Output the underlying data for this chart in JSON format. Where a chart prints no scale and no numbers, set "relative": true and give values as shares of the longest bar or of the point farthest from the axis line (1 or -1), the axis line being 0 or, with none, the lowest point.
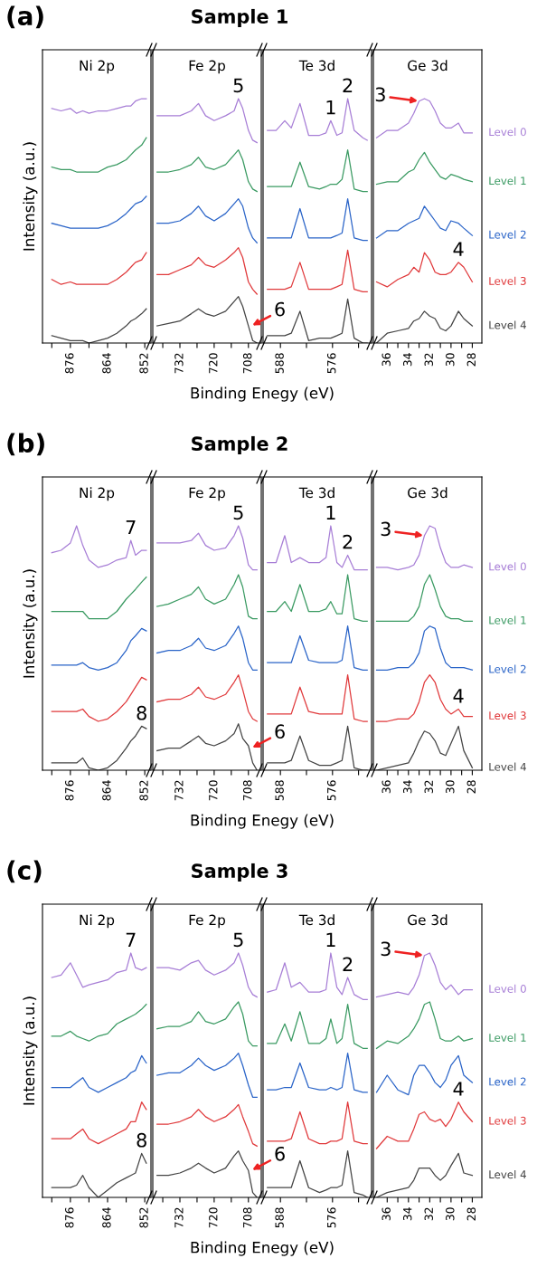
{
  "chart_data": [
    {
      "type": "line",
      "relative": true,
      "title": "Ni 2p",
      "ylabel": "Intensity (a.u.)",
      "x": [
        882,
        879,
        876,
        874,
        872,
        870,
        867,
        864,
        861,
        858,
        856.5,
        855,
        853,
        851.5
      ],
      "xlim": [
        885,
        850
      ],
      "xticks": [
        {
          "value": 882,
          "label": null
        },
        876,
        {
          "value": 870,
          "label": null
        },
        864,
        {
          "value": 858,
          "label": null
        },
        852
      ],
      "tick_labels": "x",
      "annotations": [
        "(a)",
        "Sample 1"
      ],
      "series": [
        {
          "color": "#a77ed6",
          "values": [
            0.96,
            0.95,
            0.96,
            0.94,
            0.95,
            0.94,
            0.95,
            0.95,
            0.96,
            0.97,
            0.97,
            0.99,
            1.0,
            1.0
          ]
        },
        {
          "color": "#3a9a62",
          "values": [
            0.72,
            0.71,
            0.71,
            0.7,
            0.7,
            0.7,
            0.7,
            0.72,
            0.73,
            0.75,
            0.77,
            0.79,
            0.81,
            0.84
          ]
        },
        {
          "color": "#2a64c8",
          "values": [
            0.49,
            0.48,
            0.47,
            0.47,
            0.47,
            0.47,
            0.47,
            0.48,
            0.5,
            0.53,
            0.55,
            0.57,
            0.58,
            0.6
          ]
        },
        {
          "color": "#e0393b",
          "values": [
            0.26,
            0.24,
            0.25,
            0.24,
            0.24,
            0.24,
            0.24,
            0.24,
            0.26,
            0.29,
            0.31,
            0.33,
            0.34,
            0.37
          ]
        },
        {
          "color": "#444444",
          "values": [
            0.03,
            0.02,
            0.01,
            0.01,
            0.01,
            0.0,
            0.01,
            0.02,
            0.04,
            0.07,
            0.09,
            0.1,
            0.12,
            0.14
          ]
        }
      ]
    },
    {
      "type": "line",
      "relative": true,
      "title": "Fe 2p",
      "xlabel": "Binding Enegy (eV)",
      "x": [
        740,
        736,
        732,
        728,
        725.5,
        723,
        720,
        716,
        713,
        711.5,
        710,
        708,
        706.5,
        705
      ],
      "xlim": [
        741.5,
        703.5
      ],
      "xticks": [
        {
          "value": 738,
          "label": null
        },
        732,
        {
          "value": 726,
          "label": null
        },
        720,
        {
          "value": 714,
          "label": null
        },
        708
      ],
      "tick_labels": "x",
      "annotations": [
        {
          "text": "5",
          "x": 711.5,
          "y": 1.0
        },
        {
          "text": "6",
          "x": 707,
          "y": 0.07
        }
      ],
      "series": [
        {
          "color": "#a77ed6",
          "values": [
            0.93,
            0.93,
            0.93,
            0.95,
            0.98,
            0.93,
            0.91,
            0.93,
            0.95,
            1.0,
            0.96,
            0.87,
            0.83,
            0.82
          ]
        },
        {
          "color": "#3a9a62",
          "values": [
            0.7,
            0.7,
            0.71,
            0.73,
            0.76,
            0.72,
            0.71,
            0.73,
            0.77,
            0.79,
            0.75,
            0.66,
            0.63,
            0.62
          ]
        },
        {
          "color": "#2a64c8",
          "values": [
            0.49,
            0.49,
            0.5,
            0.53,
            0.56,
            0.52,
            0.5,
            0.53,
            0.57,
            0.59,
            0.56,
            0.47,
            0.43,
            0.41
          ]
        },
        {
          "color": "#e0393b",
          "values": [
            0.28,
            0.28,
            0.3,
            0.32,
            0.35,
            0.32,
            0.31,
            0.34,
            0.37,
            0.39,
            0.35,
            0.25,
            0.22,
            0.2
          ]
        },
        {
          "color": "#444444",
          "values": [
            0.07,
            0.08,
            0.09,
            0.12,
            0.14,
            0.12,
            0.11,
            0.13,
            0.17,
            0.19,
            0.15,
            0.07,
            0.01,
            0.0
          ]
        }
      ]
    },
    {
      "type": "line",
      "relative": true,
      "title": "Te 3d",
      "x": [
        591,
        589,
        587,
        585.5,
        583.5,
        581.5,
        579,
        577.5,
        576.4,
        575,
        573.8,
        572.5,
        571,
        569,
        568
      ],
      "xlim": [
        592,
        567
      ],
      "xticks": [
        588,
        {
          "value": 582,
          "label": null
        },
        576,
        {
          "value": 570,
          "label": null
        }
      ],
      "tick_labels": "x",
      "annotations": [
        {
          "text": "1",
          "x": 576.4,
          "y": 0.91
        },
        {
          "text": "2",
          "x": 572.5,
          "y": 1.0
        }
      ],
      "series": [
        {
          "color": "#a77ed6",
          "values": [
            0.87,
            0.87,
            0.91,
            0.88,
            0.98,
            0.85,
            0.85,
            0.86,
            0.91,
            0.85,
            0.86,
            1.0,
            0.87,
            0.84,
            0.83
          ]
        },
        {
          "color": "#3a9a62",
          "values": [
            0.64,
            0.64,
            0.64,
            0.64,
            0.74,
            0.64,
            0.63,
            0.64,
            0.65,
            0.65,
            0.67,
            0.79,
            0.63,
            0.62,
            0.62
          ]
        },
        {
          "color": "#2a64c8",
          "values": [
            0.43,
            0.43,
            0.43,
            0.43,
            0.55,
            0.43,
            0.43,
            0.43,
            0.43,
            0.44,
            0.45,
            0.59,
            0.43,
            0.42,
            0.42
          ]
        },
        {
          "color": "#e0393b",
          "values": [
            0.22,
            0.22,
            0.22,
            0.23,
            0.33,
            0.22,
            0.22,
            0.22,
            0.22,
            0.23,
            0.24,
            0.38,
            0.22,
            0.21,
            0.21
          ]
        },
        {
          "color": "#444444",
          "values": [
            0.03,
            0.03,
            0.03,
            0.04,
            0.13,
            0.01,
            0.02,
            0.02,
            0.02,
            0.03,
            0.04,
            0.18,
            0.02,
            0.0,
            0.0
          ]
        }
      ]
    },
    {
      "type": "line",
      "relative": true,
      "title": "Ge 3d",
      "x": [
        37,
        36,
        35,
        34,
        33.5,
        33,
        32.5,
        32,
        31.5,
        31,
        30.5,
        30,
        29.3,
        28.8,
        28
      ],
      "xlim": [
        37.3,
        27.1
      ],
      "xticks": [
        36,
        {
          "value": 35,
          "label": null
        },
        34,
        {
          "value": 33,
          "label": null
        },
        32,
        {
          "value": 31,
          "label": null
        },
        30,
        {
          "value": 29,
          "label": null
        },
        28
      ],
      "tick_labels": "x",
      "annotations": [
        {
          "text": "3",
          "x": 33,
          "y": 0.99
        },
        {
          "text": "4",
          "x": 29.3,
          "y": 0.33
        }
      ],
      "series": [
        {
          "name": "Level 0",
          "color": "#a77ed6",
          "values": [
            0.84,
            0.87,
            0.87,
            0.9,
            0.94,
            0.99,
            1.0,
            0.99,
            0.95,
            0.9,
            0.88,
            0.88,
            0.9,
            0.86,
            0.86
          ]
        },
        {
          "name": "Level 1",
          "color": "#3a9a62",
          "values": [
            0.65,
            0.66,
            0.66,
            0.7,
            0.71,
            0.75,
            0.78,
            0.74,
            0.71,
            0.68,
            0.67,
            0.69,
            0.68,
            0.67,
            0.66
          ]
        },
        {
          "name": "Level 2",
          "color": "#2a64c8",
          "values": [
            0.43,
            0.46,
            0.46,
            0.49,
            0.5,
            0.51,
            0.56,
            0.53,
            0.5,
            0.47,
            0.46,
            0.5,
            0.49,
            0.47,
            0.44
          ]
        },
        {
          "name": "Level 3",
          "color": "#e0393b",
          "values": [
            0.25,
            0.23,
            0.26,
            0.28,
            0.31,
            0.29,
            0.37,
            0.34,
            0.29,
            0.28,
            0.28,
            0.29,
            0.33,
            0.31,
            0.25
          ]
        },
        {
          "name": "Level 4",
          "color": "#444444",
          "values": [
            0.0,
            0.04,
            0.05,
            0.06,
            0.09,
            0.1,
            0.13,
            0.11,
            0.1,
            0.06,
            0.05,
            0.07,
            0.13,
            0.1,
            0.07
          ]
        }
      ]
    },
    {
      "type": "line",
      "relative": true,
      "title": "Ni 2p",
      "ylabel": "Intensity (a.u.)",
      "x": [
        882,
        879,
        876,
        874,
        872,
        870,
        867,
        864,
        861,
        858,
        856.5,
        855,
        853,
        851.5
      ],
      "xlim": [
        885,
        850
      ],
      "xticks": [
        {
          "value": 882,
          "label": null
        },
        876,
        {
          "value": 870,
          "label": null
        },
        864,
        {
          "value": 858,
          "label": null
        },
        852
      ],
      "tick_labels": "x",
      "annotations": [
        "(b)",
        "Sample 2",
        {
          "text": "7",
          "x": 856.5,
          "y": 0.94
        },
        {
          "text": "8",
          "x": 853,
          "y": 0.18
        }
      ],
      "series": [
        {
          "color": "#a77ed6",
          "values": [
            0.89,
            0.9,
            0.93,
            1.0,
            0.92,
            0.86,
            0.83,
            0.84,
            0.86,
            0.87,
            0.94,
            0.88,
            0.9,
            0.9
          ]
        },
        {
          "color": "#3a9a62",
          "values": [
            0.65,
            0.65,
            0.65,
            0.65,
            0.65,
            0.62,
            0.62,
            0.62,
            0.65,
            0.7,
            0.72,
            0.74,
            0.77,
            0.79
          ]
        },
        {
          "color": "#2a64c8",
          "values": [
            0.43,
            0.43,
            0.43,
            0.43,
            0.44,
            0.42,
            0.41,
            0.42,
            0.44,
            0.49,
            0.53,
            0.55,
            0.58,
            0.57
          ]
        },
        {
          "color": "#e0393b",
          "values": [
            0.24,
            0.24,
            0.24,
            0.24,
            0.25,
            0.22,
            0.2,
            0.21,
            0.24,
            0.28,
            0.31,
            0.34,
            0.38,
            0.37
          ]
        },
        {
          "color": "#444444",
          "values": [
            0.03,
            0.03,
            0.03,
            0.03,
            0.05,
            0.01,
            0.0,
            0.01,
            0.04,
            0.09,
            0.12,
            0.14,
            0.18,
            0.17
          ]
        }
      ]
    },
    {
      "type": "line",
      "relative": true,
      "title": "Fe 2p",
      "xlabel": "Binding Enegy (eV)",
      "x": [
        740,
        736,
        732,
        728,
        725.5,
        723,
        720,
        716,
        713,
        711.5,
        710,
        708,
        706.5,
        705
      ],
      "xlim": [
        741.5,
        703.5
      ],
      "xticks": [
        {
          "value": 738,
          "label": null
        },
        732,
        {
          "value": 726,
          "label": null
        },
        720,
        {
          "value": 714,
          "label": null
        },
        708
      ],
      "tick_labels": "x",
      "annotations": [
        {
          "text": "5",
          "x": 711.5,
          "y": 1.0
        },
        {
          "text": "6",
          "x": 707,
          "y": 0.09
        }
      ],
      "series": [
        {
          "color": "#a77ed6",
          "values": [
            0.93,
            0.93,
            0.93,
            0.94,
            0.97,
            0.92,
            0.9,
            0.91,
            0.96,
            1.0,
            0.95,
            0.84,
            0.82,
            0.82
          ]
        },
        {
          "color": "#3a9a62",
          "values": [
            0.67,
            0.68,
            0.7,
            0.72,
            0.75,
            0.7,
            0.68,
            0.7,
            0.76,
            0.8,
            0.75,
            0.63,
            0.62,
            0.62
          ]
        },
        {
          "color": "#2a64c8",
          "values": [
            0.48,
            0.49,
            0.49,
            0.51,
            0.54,
            0.5,
            0.49,
            0.51,
            0.56,
            0.59,
            0.54,
            0.44,
            0.41,
            0.41
          ]
        },
        {
          "color": "#e0393b",
          "values": [
            0.28,
            0.29,
            0.29,
            0.31,
            0.34,
            0.3,
            0.29,
            0.31,
            0.36,
            0.39,
            0.33,
            0.24,
            0.21,
            0.2
          ]
        },
        {
          "color": "#444444",
          "values": [
            0.08,
            0.09,
            0.09,
            0.12,
            0.14,
            0.11,
            0.1,
            0.12,
            0.15,
            0.19,
            0.13,
            0.1,
            0.03,
            0.0
          ]
        }
      ]
    },
    {
      "type": "line",
      "relative": true,
      "title": "Te 3d",
      "x": [
        591,
        589,
        587,
        585.5,
        583.5,
        581.5,
        579,
        577.5,
        576.4,
        575,
        573.8,
        572.5,
        571,
        569,
        568
      ],
      "xlim": [
        592,
        567
      ],
      "xticks": [
        588,
        {
          "value": 582,
          "label": null
        },
        576,
        {
          "value": 570,
          "label": null
        }
      ],
      "tick_labels": "x",
      "annotations": [
        {
          "text": "1",
          "x": 576.4,
          "y": 1.0
        },
        {
          "text": "2",
          "x": 572.5,
          "y": 0.88
        }
      ],
      "series": [
        {
          "color": "#a77ed6",
          "values": [
            0.85,
            0.85,
            0.96,
            0.85,
            0.87,
            0.85,
            0.85,
            0.87,
            1.0,
            0.85,
            0.83,
            0.88,
            0.82,
            0.82,
            0.82
          ]
        },
        {
          "color": "#3a9a62",
          "values": [
            0.65,
            0.65,
            0.69,
            0.65,
            0.76,
            0.65,
            0.65,
            0.66,
            0.69,
            0.64,
            0.64,
            0.8,
            0.62,
            0.61,
            0.61
          ]
        },
        {
          "color": "#2a64c8",
          "values": [
            0.44,
            0.44,
            0.44,
            0.44,
            0.55,
            0.45,
            0.44,
            0.44,
            0.44,
            0.44,
            0.45,
            0.59,
            0.42,
            0.41,
            0.41
          ]
        },
        {
          "color": "#e0393b",
          "values": [
            0.23,
            0.23,
            0.23,
            0.23,
            0.34,
            0.24,
            0.23,
            0.23,
            0.23,
            0.23,
            0.23,
            0.39,
            0.21,
            0.2,
            0.2
          ]
        },
        {
          "color": "#444444",
          "values": [
            0.03,
            0.03,
            0.03,
            0.04,
            0.14,
            0.04,
            0.02,
            0.02,
            0.02,
            0.03,
            0.04,
            0.18,
            0.01,
            0.0,
            0.0
          ]
        }
      ]
    },
    {
      "type": "line",
      "relative": true,
      "title": "Ge 3d",
      "x": [
        37,
        36,
        35,
        34,
        33.5,
        33,
        32.5,
        32,
        31.5,
        31,
        30.5,
        30,
        29.3,
        28.8,
        28
      ],
      "xlim": [
        37.3,
        27.1
      ],
      "xticks": [
        36,
        {
          "value": 35,
          "label": null
        },
        34,
        {
          "value": 33,
          "label": null
        },
        32,
        {
          "value": 31,
          "label": null
        },
        30,
        {
          "value": 29,
          "label": null
        },
        28
      ],
      "tick_labels": "x",
      "annotations": [
        {
          "text": "3",
          "x": 32.5,
          "y": 0.96
        },
        {
          "text": "4",
          "x": 29.3,
          "y": 0.25
        }
      ],
      "series": [
        {
          "name": "Level 0",
          "color": "#a77ed6",
          "values": [
            0.83,
            0.83,
            0.82,
            0.83,
            0.84,
            0.88,
            0.96,
            1.0,
            0.99,
            0.91,
            0.85,
            0.83,
            0.83,
            0.84,
            0.83
          ]
        },
        {
          "name": "Level 1",
          "color": "#3a9a62",
          "values": [
            0.61,
            0.61,
            0.61,
            0.61,
            0.63,
            0.67,
            0.76,
            0.8,
            0.74,
            0.67,
            0.63,
            0.62,
            0.62,
            0.61,
            0.61
          ]
        },
        {
          "name": "Level 2",
          "color": "#2a64c8",
          "values": [
            0.41,
            0.41,
            0.42,
            0.42,
            0.44,
            0.48,
            0.57,
            0.59,
            0.58,
            0.5,
            0.44,
            0.42,
            0.42,
            0.42,
            0.41
          ]
        },
        {
          "name": "Level 3",
          "color": "#e0393b",
          "values": [
            0.2,
            0.2,
            0.21,
            0.21,
            0.23,
            0.28,
            0.36,
            0.39,
            0.36,
            0.29,
            0.25,
            0.23,
            0.25,
            0.22,
            0.22
          ]
        },
        {
          "name": "Level 4",
          "color": "#444444",
          "values": [
            0.0,
            0.01,
            0.02,
            0.03,
            0.07,
            0.12,
            0.16,
            0.15,
            0.12,
            0.07,
            0.06,
            0.11,
            0.18,
            0.08,
            0.01
          ]
        }
      ]
    },
    {
      "type": "line",
      "relative": true,
      "title": "Ni 2p",
      "ylabel": "Intensity (a.u.)",
      "x": [
        882,
        879,
        876,
        874,
        872,
        870,
        867,
        864,
        861,
        858,
        856.5,
        855,
        853,
        851.5
      ],
      "xlim": [
        885,
        850
      ],
      "xticks": [
        {
          "value": 882,
          "label": null
        },
        876,
        {
          "value": 870,
          "label": null
        },
        864,
        {
          "value": 858,
          "label": null
        },
        852
      ],
      "tick_labels": "x",
      "annotations": [
        "(c)",
        "Sample 3",
        {
          "text": "7",
          "x": 856.5,
          "y": 1.0
        },
        {
          "text": "8",
          "x": 853,
          "y": 0.18
        }
      ],
      "series": [
        {
          "color": "#a77ed6",
          "values": [
            0.9,
            0.91,
            0.96,
            0.91,
            0.86,
            0.87,
            0.88,
            0.89,
            0.92,
            0.93,
            1.0,
            0.94,
            0.93,
            0.94
          ]
        },
        {
          "color": "#3a9a62",
          "values": [
            0.66,
            0.66,
            0.68,
            0.66,
            0.65,
            0.64,
            0.66,
            0.67,
            0.71,
            0.73,
            0.74,
            0.75,
            0.77,
            0.79
          ]
        },
        {
          "color": "#2a64c8",
          "values": [
            0.45,
            0.45,
            0.45,
            0.47,
            0.49,
            0.45,
            0.43,
            0.45,
            0.47,
            0.49,
            0.51,
            0.52,
            0.58,
            0.55
          ]
        },
        {
          "color": "#e0393b",
          "values": [
            0.24,
            0.24,
            0.24,
            0.26,
            0.28,
            0.24,
            0.22,
            0.24,
            0.26,
            0.28,
            0.31,
            0.31,
            0.39,
            0.36
          ]
        },
        {
          "color": "#444444",
          "values": [
            0.04,
            0.04,
            0.04,
            0.05,
            0.09,
            0.04,
            0.0,
            0.03,
            0.06,
            0.08,
            0.09,
            0.1,
            0.18,
            0.14
          ]
        }
      ]
    },
    {
      "type": "line",
      "relative": true,
      "title": "Fe 2p",
      "xlabel": "Binding Enegy (eV)",
      "x": [
        740,
        736,
        732,
        728,
        725.5,
        723,
        720,
        716,
        713,
        711.5,
        710,
        708,
        706.5,
        705
      ],
      "xlim": [
        741.5,
        703.5
      ],
      "xticks": [
        {
          "value": 738,
          "label": null
        },
        732,
        {
          "value": 726,
          "label": null
        },
        720,
        {
          "value": 714,
          "label": null
        },
        708
      ],
      "tick_labels": "x",
      "annotations": [
        {
          "text": "5",
          "x": 711.5,
          "y": 1.0
        },
        {
          "text": "6",
          "x": 707,
          "y": 0.11
        }
      ],
      "series": [
        {
          "color": "#a77ed6",
          "values": [
            0.94,
            0.94,
            0.93,
            0.96,
            0.97,
            0.93,
            0.91,
            0.93,
            0.96,
            1.0,
            0.95,
            0.86,
            0.83,
            0.82
          ]
        },
        {
          "color": "#3a9a62",
          "values": [
            0.69,
            0.7,
            0.7,
            0.72,
            0.76,
            0.72,
            0.71,
            0.73,
            0.78,
            0.8,
            0.75,
            0.64,
            0.62,
            0.62
          ]
        },
        {
          "color": "#2a64c8",
          "values": [
            0.5,
            0.51,
            0.51,
            0.54,
            0.57,
            0.54,
            0.52,
            0.54,
            0.57,
            0.59,
            0.54,
            0.46,
            0.41,
            0.41
          ]
        },
        {
          "color": "#e0393b",
          "values": [
            0.3,
            0.3,
            0.31,
            0.33,
            0.36,
            0.33,
            0.31,
            0.33,
            0.36,
            0.38,
            0.33,
            0.27,
            0.22,
            0.21
          ]
        },
        {
          "color": "#444444",
          "values": [
            0.09,
            0.09,
            0.1,
            0.12,
            0.14,
            0.12,
            0.1,
            0.12,
            0.17,
            0.19,
            0.15,
            0.11,
            0.02,
            0.0
          ]
        }
      ]
    },
    {
      "type": "line",
      "relative": true,
      "title": "Te 3d",
      "x": [
        591,
        589,
        587,
        585.5,
        583.5,
        581.5,
        579,
        577.5,
        576.4,
        575,
        573.8,
        572.5,
        571,
        569,
        568
      ],
      "xlim": [
        592,
        567
      ],
      "xticks": [
        588,
        {
          "value": 582,
          "label": null
        },
        576,
        {
          "value": 570,
          "label": null
        }
      ],
      "tick_labels": "x",
      "annotations": [
        {
          "text": "1",
          "x": 576.4,
          "y": 1.0
        },
        {
          "text": "2",
          "x": 572.5,
          "y": 0.9
        }
      ],
      "series": [
        {
          "color": "#a77ed6",
          "values": [
            0.84,
            0.85,
            0.96,
            0.86,
            0.88,
            0.84,
            0.84,
            0.85,
            1.0,
            0.86,
            0.83,
            0.9,
            0.83,
            0.81,
            0.81
          ]
        },
        {
          "color": "#3a9a62",
          "values": [
            0.63,
            0.63,
            0.71,
            0.64,
            0.76,
            0.63,
            0.63,
            0.65,
            0.73,
            0.63,
            0.65,
            0.79,
            0.63,
            0.61,
            0.61
          ]
        },
        {
          "color": "#2a64c8",
          "values": [
            0.44,
            0.44,
            0.45,
            0.45,
            0.55,
            0.45,
            0.44,
            0.44,
            0.45,
            0.44,
            0.45,
            0.59,
            0.44,
            0.43,
            0.43
          ]
        },
        {
          "color": "#e0393b",
          "values": [
            0.23,
            0.23,
            0.23,
            0.24,
            0.35,
            0.24,
            0.22,
            0.22,
            0.23,
            0.23,
            0.24,
            0.39,
            0.23,
            0.22,
            0.22
          ]
        },
        {
          "color": "#444444",
          "values": [
            0.04,
            0.04,
            0.04,
            0.04,
            0.15,
            0.04,
            0.02,
            0.03,
            0.04,
            0.04,
            0.05,
            0.19,
            0.02,
            0.01,
            0.0
          ]
        }
      ]
    },
    {
      "type": "line",
      "relative": true,
      "title": "Ge 3d",
      "x": [
        37,
        36,
        35,
        34,
        33.5,
        33,
        32.5,
        32,
        31.5,
        31,
        30.5,
        30,
        29.3,
        28.8,
        28
      ],
      "xlim": [
        37.3,
        27.1
      ],
      "xticks": [
        36,
        {
          "value": 35,
          "label": null
        },
        34,
        {
          "value": 33,
          "label": null
        },
        32,
        {
          "value": 31,
          "label": null
        },
        30,
        {
          "value": 29,
          "label": null
        },
        28
      ],
      "tick_labels": "x",
      "annotations": [
        {
          "text": "3",
          "x": 32.5,
          "y": 0.99
        },
        {
          "text": "4",
          "x": 29.3,
          "y": 0.39
        }
      ],
      "series": [
        {
          "name": "Level 0",
          "color": "#a77ed6",
          "values": [
            0.82,
            0.83,
            0.84,
            0.83,
            0.86,
            0.91,
            0.99,
            1.0,
            0.95,
            0.88,
            0.85,
            0.87,
            0.83,
            0.85,
            0.85
          ]
        },
        {
          "name": "Level 1",
          "color": "#3a9a62",
          "values": [
            0.61,
            0.64,
            0.63,
            0.66,
            0.69,
            0.73,
            0.79,
            0.8,
            0.73,
            0.65,
            0.64,
            0.64,
            0.66,
            0.64,
            0.65
          ]
        },
        {
          "name": "Level 2",
          "color": "#2a64c8",
          "values": [
            0.43,
            0.5,
            0.44,
            0.42,
            0.5,
            0.54,
            0.54,
            0.51,
            0.47,
            0.45,
            0.48,
            0.54,
            0.58,
            0.5,
            0.47
          ]
        },
        {
          "name": "Level 3",
          "color": "#e0393b",
          "values": [
            0.2,
            0.25,
            0.23,
            0.23,
            0.28,
            0.34,
            0.35,
            0.32,
            0.31,
            0.32,
            0.29,
            0.32,
            0.39,
            0.35,
            0.31
          ]
        },
        {
          "name": "Level 4",
          "color": "#444444",
          "values": [
            0.0,
            0.02,
            0.03,
            0.04,
            0.07,
            0.12,
            0.12,
            0.12,
            0.09,
            0.07,
            0.09,
            0.13,
            0.18,
            0.1,
            0.09
          ]
        }
      ]
    }
  ]
}
